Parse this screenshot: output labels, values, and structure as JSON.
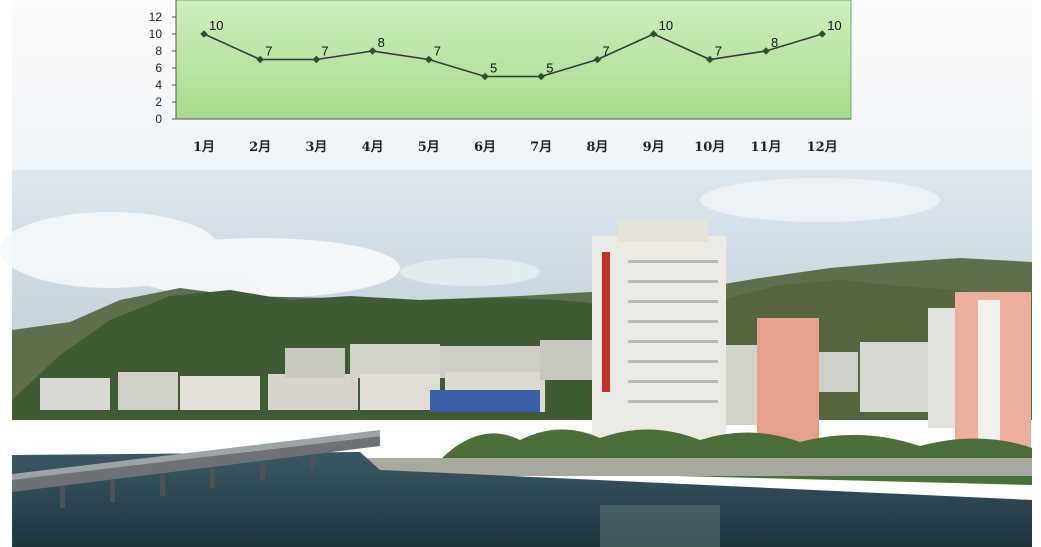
{
  "chart_data": {
    "type": "line",
    "categories": [
      "1月",
      "2月",
      "3月",
      "4月",
      "5月",
      "6月",
      "7月",
      "8月",
      "9月",
      "10月",
      "11月",
      "12月"
    ],
    "values": [
      10,
      7,
      7,
      8,
      7,
      5,
      5,
      7,
      10,
      7,
      8,
      10
    ],
    "yticks": [
      0,
      2,
      4,
      6,
      8,
      10,
      12
    ],
    "ylim": [
      0,
      14
    ],
    "grid": false,
    "legend": "none",
    "plot_fill_top": "#cfeebd",
    "plot_fill_bottom": "#a6dc8e",
    "line_color": "#3a3a3a",
    "marker_color": "#2f4f2f"
  },
  "photo": {
    "sky_color": "#dfe7ee",
    "hill_color": "#3f5a34",
    "water_color": "#2e4a52",
    "tower_banner_color": "#c0312b"
  }
}
